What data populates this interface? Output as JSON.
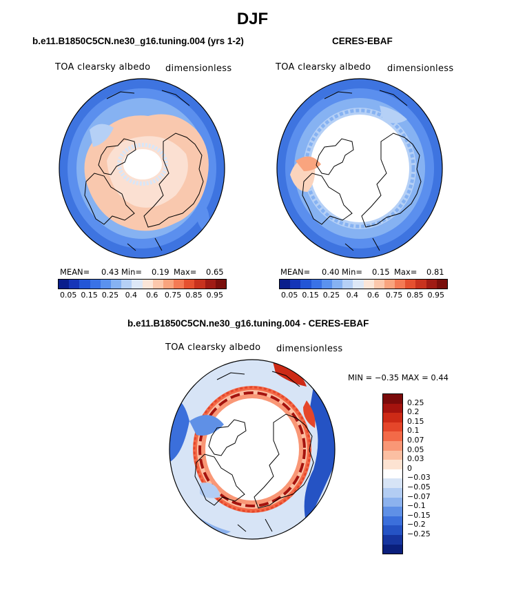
{
  "figure": {
    "title": "DJF",
    "left_panel_title": "b.e11.B1850C5CN.ne30_g16.tuning.004 (yrs 1-2)",
    "right_panel_title": "CERES-EBAF",
    "diff_panel_title": "b.e11.B1850C5CN.ne30_g16.tuning.004 - CERES-EBAF"
  },
  "left_map": {
    "variable_label": "TOA clearsky albedo",
    "units_label": "dimensionless",
    "stats": {
      "mean_label": "MEAN=",
      "mean": "0.43",
      "min_label": "Min=",
      "min": "0.19",
      "max_label": "Max=",
      "max": "0.65"
    }
  },
  "right_map": {
    "variable_label": "TOA clearsky albedo",
    "units_label": "dimensionless",
    "stats": {
      "mean_label": "MEAN=",
      "mean": "0.40",
      "min_label": "Min=",
      "min": "0.15",
      "max_label": "Max=",
      "max": "0.81"
    }
  },
  "diff_map": {
    "variable_label": "TOA clearsky albedo",
    "units_label": "dimensionless",
    "minmax_text": "MIN =   −0.35  MAX =    0.44"
  },
  "colorbar_main": {
    "colors": [
      "#0a1e8c",
      "#1535b8",
      "#2356d6",
      "#3a72e6",
      "#5b92ee",
      "#86b2f2",
      "#b5d0f6",
      "#dde8f7",
      "#fbe6d8",
      "#fcc8ac",
      "#f9a47e",
      "#f47a54",
      "#e5502f",
      "#c8321e",
      "#a01b14",
      "#7a0f0c"
    ],
    "tick_labels": [
      "0.05",
      "0.15",
      "0.25",
      "0.4",
      "0.6",
      "0.75",
      "0.85",
      "0.95"
    ]
  },
  "colorbar_diff": {
    "colors": [
      "#7a0a0a",
      "#a5130e",
      "#cd2a16",
      "#e5462a",
      "#f36a48",
      "#f99776",
      "#fbbfa2",
      "#fde3d2",
      "#ffffff",
      "#d7e4f6",
      "#b3cdf3",
      "#8cb2ee",
      "#5f90e6",
      "#3b6fdb",
      "#2553c4",
      "#16359f",
      "#0a1f7c"
    ],
    "tick_labels": [
      "0.25",
      "0.2",
      "0.15",
      "0.1",
      "0.07",
      "0.05",
      "0.03",
      "0",
      "−0.03",
      "−0.05",
      "−0.07",
      "−0.1",
      "−0.15",
      "−0.2",
      "−0.25"
    ]
  }
}
